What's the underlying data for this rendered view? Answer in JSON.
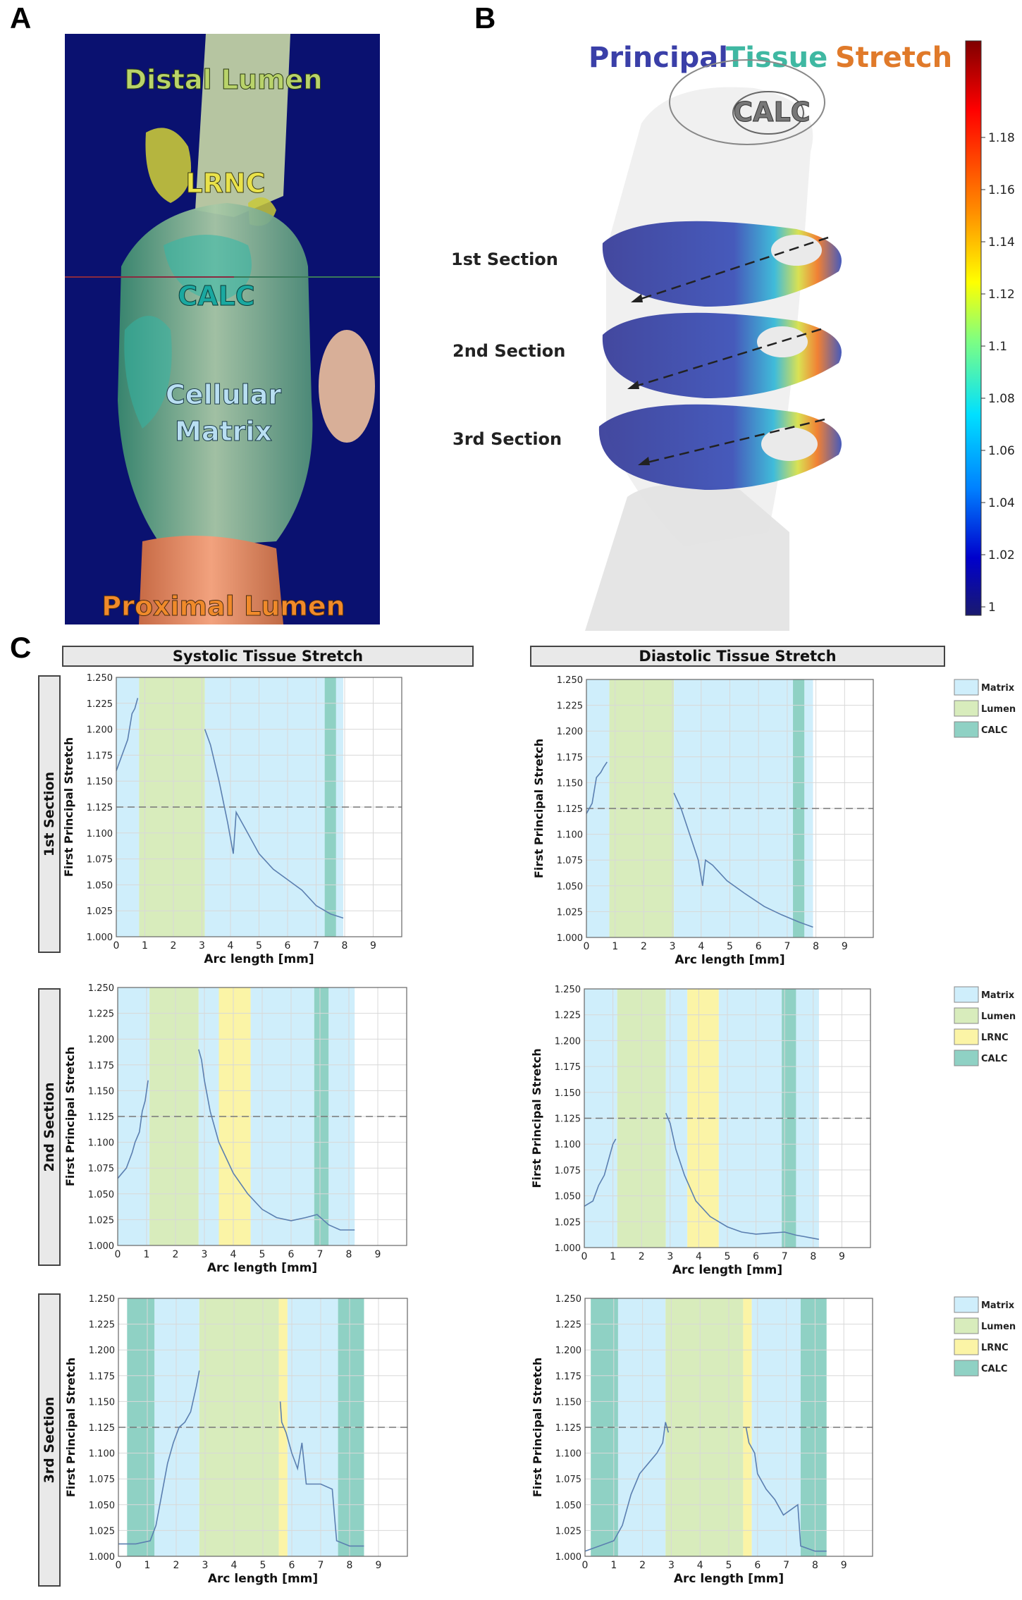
{
  "panelA": {
    "letter": "A",
    "labels": {
      "distal": "Distal Lumen",
      "lrnc": "LRNC",
      "calc": "CALC",
      "cellular1": "Cellular",
      "cellular2": "Matrix",
      "proximal": "Proximal Lumen"
    }
  },
  "panelB": {
    "letter": "B",
    "title_words": [
      "Principal",
      "Tissue",
      "Stretch"
    ],
    "calc_label": "CALC",
    "sections": [
      "1st Section",
      "2nd Section",
      "3rd Section"
    ],
    "colorbar": {
      "ticks": [
        "1.18",
        "1.16",
        "1.14",
        "1.12",
        "1.1",
        "1.08",
        "1.06",
        "1.04",
        "1.02",
        "1"
      ],
      "colors": [
        "#7f0000",
        "#ff0000",
        "#ff9000",
        "#ffff00",
        "#80ff80",
        "#00e0ff",
        "#0080ff",
        "#0000cc",
        "#1a1a6e"
      ]
    }
  },
  "panelC": {
    "letter": "C",
    "col_headers": [
      "Systolic Tissue Stretch",
      "Diastolic Tissue Stretch"
    ],
    "row_labels": [
      "1st Section",
      "2nd Section",
      "3rd Section"
    ],
    "legend_colors": {
      "Matrix": "#cfeefb",
      "Lumen": "#d8ecbc",
      "LRNC": "#fbf4a6",
      "CALC": "#8fd1c4"
    },
    "line_color": "#5b7fb0"
  },
  "chart_data": [
    {
      "type": "line",
      "title": "Systolic Tissue Stretch - 1st Section",
      "xlabel": "Arc length [mm]",
      "ylabel": "First Principal Stretch",
      "xlim": [
        0,
        10
      ],
      "ylim": [
        1.0,
        1.25
      ],
      "xticks": [
        0,
        1,
        2,
        3,
        4,
        5,
        6,
        7,
        8,
        9
      ],
      "yticks": [
        "1.000",
        "1.025",
        "1.050",
        "1.075",
        "1.100",
        "1.125",
        "1.150",
        "1.175",
        "1.200",
        "1.225",
        "1.250"
      ],
      "threshold": 1.125,
      "legend": [
        "Matrix",
        "Lumen",
        "CALC"
      ],
      "regions": [
        {
          "type": "Matrix",
          "x0": 0,
          "x1": 0.8
        },
        {
          "type": "Lumen",
          "x0": 0.8,
          "x1": 3.1
        },
        {
          "type": "Matrix",
          "x0": 3.1,
          "x1": 7.3
        },
        {
          "type": "CALC",
          "x0": 7.3,
          "x1": 7.7
        },
        {
          "type": "Matrix",
          "x0": 7.7,
          "x1": 7.95
        }
      ],
      "segments": [
        [
          [
            0,
            1.16
          ],
          [
            0.2,
            1.175
          ],
          [
            0.4,
            1.19
          ],
          [
            0.55,
            1.215
          ],
          [
            0.65,
            1.22
          ],
          [
            0.75,
            1.23
          ]
        ],
        [
          [
            3.1,
            1.2
          ],
          [
            3.3,
            1.185
          ],
          [
            3.6,
            1.15
          ],
          [
            3.9,
            1.11
          ],
          [
            4.1,
            1.08
          ],
          [
            4.2,
            1.12
          ],
          [
            4.5,
            1.105
          ],
          [
            5,
            1.08
          ],
          [
            5.5,
            1.065
          ],
          [
            6,
            1.055
          ],
          [
            6.5,
            1.045
          ],
          [
            7,
            1.03
          ],
          [
            7.5,
            1.022
          ],
          [
            7.95,
            1.018
          ]
        ]
      ]
    },
    {
      "type": "line",
      "title": "Diastolic Tissue Stretch - 1st Section",
      "xlabel": "Arc length [mm]",
      "ylabel": "First Principal Stretch",
      "xlim": [
        0,
        10
      ],
      "ylim": [
        1.0,
        1.25
      ],
      "xticks": [
        0,
        1,
        2,
        3,
        4,
        5,
        6,
        7,
        8,
        9
      ],
      "yticks": [
        "1.000",
        "1.025",
        "1.050",
        "1.075",
        "1.100",
        "1.125",
        "1.150",
        "1.175",
        "1.200",
        "1.225",
        "1.250"
      ],
      "threshold": 1.125,
      "legend": [
        "Matrix",
        "Lumen",
        "CALC"
      ],
      "regions": [
        {
          "type": "Matrix",
          "x0": 0,
          "x1": 0.8
        },
        {
          "type": "Lumen",
          "x0": 0.8,
          "x1": 3.05
        },
        {
          "type": "Matrix",
          "x0": 3.05,
          "x1": 7.2
        },
        {
          "type": "CALC",
          "x0": 7.2,
          "x1": 7.6
        },
        {
          "type": "Matrix",
          "x0": 7.6,
          "x1": 7.9
        }
      ],
      "segments": [
        [
          [
            0,
            1.12
          ],
          [
            0.2,
            1.13
          ],
          [
            0.35,
            1.155
          ],
          [
            0.5,
            1.16
          ],
          [
            0.6,
            1.165
          ],
          [
            0.72,
            1.17
          ]
        ],
        [
          [
            3.05,
            1.14
          ],
          [
            3.3,
            1.125
          ],
          [
            3.6,
            1.1
          ],
          [
            3.9,
            1.075
          ],
          [
            4.05,
            1.05
          ],
          [
            4.15,
            1.075
          ],
          [
            4.4,
            1.07
          ],
          [
            4.9,
            1.055
          ],
          [
            5.5,
            1.043
          ],
          [
            6.2,
            1.03
          ],
          [
            6.8,
            1.022
          ],
          [
            7.4,
            1.015
          ],
          [
            7.9,
            1.01
          ]
        ]
      ]
    },
    {
      "type": "line",
      "title": "Systolic Tissue Stretch - 2nd Section",
      "xlabel": "Arc length [mm]",
      "ylabel": "First Principal Stretch",
      "xlim": [
        0,
        10
      ],
      "ylim": [
        1.0,
        1.25
      ],
      "xticks": [
        0,
        1,
        2,
        3,
        4,
        5,
        6,
        7,
        8,
        9
      ],
      "yticks": [
        "1.000",
        "1.025",
        "1.050",
        "1.075",
        "1.100",
        "1.125",
        "1.150",
        "1.175",
        "1.200",
        "1.225",
        "1.250"
      ],
      "threshold": 1.125,
      "legend": [
        "Matrix",
        "Lumen",
        "LRNC",
        "CALC"
      ],
      "regions": [
        {
          "type": "Matrix",
          "x0": 0,
          "x1": 1.1
        },
        {
          "type": "Lumen",
          "x0": 1.1,
          "x1": 2.8
        },
        {
          "type": "Matrix",
          "x0": 2.8,
          "x1": 3.5
        },
        {
          "type": "LRNC",
          "x0": 3.5,
          "x1": 4.6
        },
        {
          "type": "Matrix",
          "x0": 4.6,
          "x1": 6.8
        },
        {
          "type": "CALC",
          "x0": 6.8,
          "x1": 7.3
        },
        {
          "type": "Matrix",
          "x0": 7.3,
          "x1": 8.2
        }
      ],
      "segments": [
        [
          [
            0,
            1.065
          ],
          [
            0.3,
            1.075
          ],
          [
            0.5,
            1.09
          ],
          [
            0.6,
            1.1
          ],
          [
            0.75,
            1.11
          ],
          [
            0.85,
            1.13
          ],
          [
            0.95,
            1.14
          ],
          [
            1.05,
            1.16
          ]
        ],
        [
          [
            2.8,
            1.19
          ],
          [
            2.9,
            1.18
          ],
          [
            3.0,
            1.16
          ],
          [
            3.2,
            1.13
          ],
          [
            3.5,
            1.1
          ],
          [
            4,
            1.07
          ],
          [
            4.5,
            1.05
          ],
          [
            5,
            1.035
          ],
          [
            5.5,
            1.027
          ],
          [
            6,
            1.024
          ],
          [
            6.5,
            1.027
          ],
          [
            6.9,
            1.03
          ],
          [
            7.3,
            1.02
          ],
          [
            7.7,
            1.015
          ],
          [
            8.2,
            1.015
          ]
        ]
      ]
    },
    {
      "type": "line",
      "title": "Diastolic Tissue Stretch - 2nd Section",
      "xlabel": "Arc length [mm]",
      "ylabel": "First Principal Stretch",
      "xlim": [
        0,
        10
      ],
      "ylim": [
        1.0,
        1.25
      ],
      "xticks": [
        0,
        1,
        2,
        3,
        4,
        5,
        6,
        7,
        8,
        9
      ],
      "yticks": [
        "1.000",
        "1.025",
        "1.050",
        "1.075",
        "1.100",
        "1.125",
        "1.150",
        "1.175",
        "1.200",
        "1.225",
        "1.250"
      ],
      "threshold": 1.125,
      "legend": [
        "Matrix",
        "Lumen",
        "LRNC",
        "CALC"
      ],
      "regions": [
        {
          "type": "Matrix",
          "x0": 0,
          "x1": 1.15
        },
        {
          "type": "Lumen",
          "x0": 1.15,
          "x1": 2.85
        },
        {
          "type": "Matrix",
          "x0": 2.85,
          "x1": 3.6
        },
        {
          "type": "LRNC",
          "x0": 3.6,
          "x1": 4.7
        },
        {
          "type": "Matrix",
          "x0": 4.7,
          "x1": 6.9
        },
        {
          "type": "CALC",
          "x0": 6.9,
          "x1": 7.4
        },
        {
          "type": "Matrix",
          "x0": 7.4,
          "x1": 8.2
        }
      ],
      "segments": [
        [
          [
            0,
            1.04
          ],
          [
            0.3,
            1.045
          ],
          [
            0.5,
            1.06
          ],
          [
            0.7,
            1.07
          ],
          [
            0.9,
            1.09
          ],
          [
            1.0,
            1.1
          ],
          [
            1.1,
            1.105
          ]
        ],
        [
          [
            2.85,
            1.13
          ],
          [
            3.0,
            1.12
          ],
          [
            3.2,
            1.095
          ],
          [
            3.5,
            1.07
          ],
          [
            3.9,
            1.045
          ],
          [
            4.4,
            1.03
          ],
          [
            5,
            1.02
          ],
          [
            5.5,
            1.015
          ],
          [
            6,
            1.013
          ],
          [
            6.5,
            1.014
          ],
          [
            7,
            1.015
          ],
          [
            7.4,
            1.012
          ],
          [
            7.8,
            1.01
          ],
          [
            8.2,
            1.008
          ]
        ]
      ]
    },
    {
      "type": "line",
      "title": "Systolic Tissue Stretch - 3rd Section",
      "xlabel": "Arc length [mm]",
      "ylabel": "First Principal Stretch",
      "xlim": [
        0,
        10
      ],
      "ylim": [
        1.0,
        1.25
      ],
      "xticks": [
        0,
        1,
        2,
        3,
        4,
        5,
        6,
        7,
        8,
        9
      ],
      "yticks": [
        "1.000",
        "1.025",
        "1.050",
        "1.075",
        "1.100",
        "1.125",
        "1.150",
        "1.175",
        "1.200",
        "1.225",
        "1.250"
      ],
      "threshold": 1.125,
      "legend": [
        "Matrix",
        "Lumen",
        "LRNC",
        "CALC"
      ],
      "regions": [
        {
          "type": "CALC",
          "x0": 0.3,
          "x1": 1.25
        },
        {
          "type": "Matrix",
          "x0": 1.25,
          "x1": 2.8
        },
        {
          "type": "Lumen",
          "x0": 2.8,
          "x1": 5.55
        },
        {
          "type": "LRNC",
          "x0": 5.55,
          "x1": 5.85
        },
        {
          "type": "Matrix",
          "x0": 5.85,
          "x1": 7.6
        },
        {
          "type": "CALC",
          "x0": 7.6,
          "x1": 8.5
        }
      ],
      "segments": [
        [
          [
            0,
            1.012
          ],
          [
            0.6,
            1.012
          ],
          [
            1.1,
            1.015
          ],
          [
            1.3,
            1.03
          ],
          [
            1.5,
            1.06
          ],
          [
            1.7,
            1.09
          ],
          [
            1.9,
            1.11
          ],
          [
            2.1,
            1.125
          ],
          [
            2.3,
            1.13
          ],
          [
            2.5,
            1.14
          ],
          [
            2.7,
            1.165
          ],
          [
            2.8,
            1.18
          ]
        ],
        [
          [
            5.6,
            1.15
          ],
          [
            5.65,
            1.13
          ],
          [
            5.8,
            1.12
          ],
          [
            6.0,
            1.1
          ],
          [
            6.2,
            1.085
          ],
          [
            6.35,
            1.11
          ],
          [
            6.5,
            1.07
          ],
          [
            7,
            1.07
          ],
          [
            7.4,
            1.065
          ],
          [
            7.55,
            1.015
          ],
          [
            8,
            1.01
          ],
          [
            8.5,
            1.01
          ]
        ]
      ]
    },
    {
      "type": "line",
      "title": "Diastolic Tissue Stretch - 3rd Section",
      "xlabel": "Arc length [mm]",
      "ylabel": "First Principal Stretch",
      "xlim": [
        0,
        10
      ],
      "ylim": [
        1.0,
        1.25
      ],
      "xticks": [
        0,
        1,
        2,
        3,
        4,
        5,
        6,
        7,
        8,
        9
      ],
      "yticks": [
        "1.000",
        "1.025",
        "1.050",
        "1.075",
        "1.100",
        "1.125",
        "1.150",
        "1.175",
        "1.200",
        "1.225",
        "1.250"
      ],
      "threshold": 1.125,
      "legend": [
        "Matrix",
        "Lumen",
        "LRNC",
        "CALC"
      ],
      "regions": [
        {
          "type": "CALC",
          "x0": 0.2,
          "x1": 1.15
        },
        {
          "type": "Matrix",
          "x0": 1.15,
          "x1": 2.8
        },
        {
          "type": "Lumen",
          "x0": 2.8,
          "x1": 5.5
        },
        {
          "type": "LRNC",
          "x0": 5.5,
          "x1": 5.8
        },
        {
          "type": "Matrix",
          "x0": 5.8,
          "x1": 7.5
        },
        {
          "type": "CALC",
          "x0": 7.5,
          "x1": 8.4
        }
      ],
      "segments": [
        [
          [
            0,
            1.005
          ],
          [
            0.5,
            1.01
          ],
          [
            1.0,
            1.015
          ],
          [
            1.3,
            1.03
          ],
          [
            1.6,
            1.06
          ],
          [
            1.9,
            1.08
          ],
          [
            2.2,
            1.09
          ],
          [
            2.5,
            1.1
          ],
          [
            2.7,
            1.11
          ],
          [
            2.8,
            1.13
          ],
          [
            2.9,
            1.12
          ]
        ],
        [
          [
            5.6,
            1.125
          ],
          [
            5.7,
            1.11
          ],
          [
            5.9,
            1.1
          ],
          [
            6.0,
            1.08
          ],
          [
            6.3,
            1.065
          ],
          [
            6.6,
            1.055
          ],
          [
            6.9,
            1.04
          ],
          [
            7.4,
            1.05
          ],
          [
            7.5,
            1.01
          ],
          [
            8,
            1.005
          ],
          [
            8.4,
            1.005
          ]
        ]
      ]
    }
  ]
}
